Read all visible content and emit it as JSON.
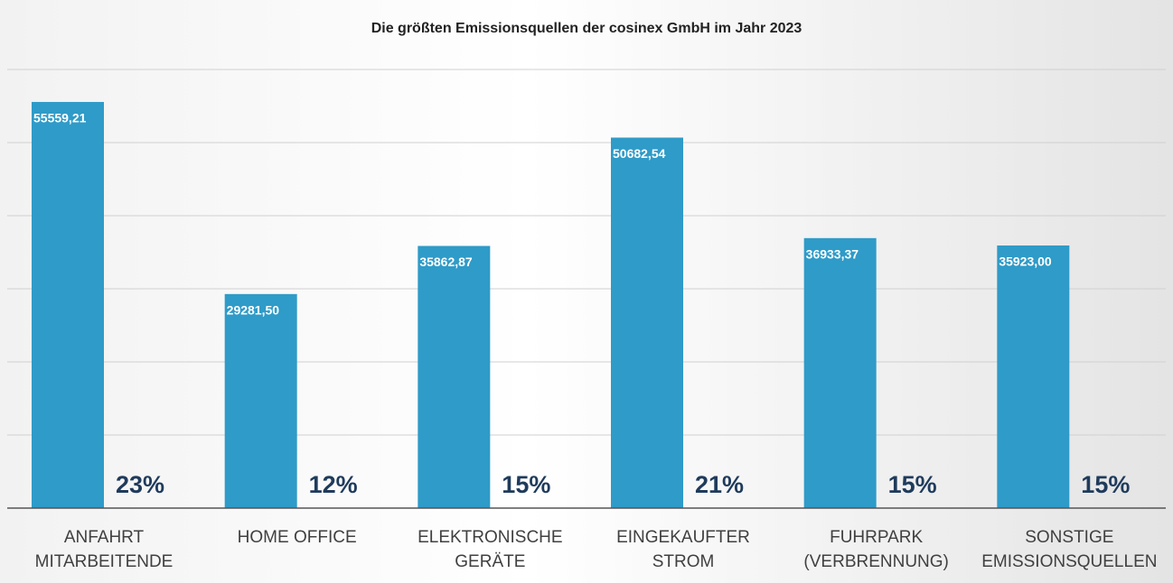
{
  "chart_data": {
    "type": "bar",
    "title": "Die größten Emissionsquellen der cosinex GmbH im Jahr 2023",
    "categories": [
      "ANFAHRT\nMITARBEITENDE",
      "HOME OFFICE",
      "ELEKTRONISCHE\nGERÄTE",
      "EINGEKAUFTER\nSTROM",
      "FUHRPARK\n(VERBRENNUNG)",
      "SONSTIGE\nEMISSIONSQUELLEN"
    ],
    "values": [
      55559.21,
      29281.5,
      35862.87,
      50682.54,
      36933.37,
      35923.0
    ],
    "value_labels": [
      "55559,21",
      "29281,50",
      "35862,87",
      "50682,54",
      "36933,37",
      "35923,00"
    ],
    "shares": [
      23,
      12,
      15,
      21,
      15,
      15
    ],
    "share_labels": [
      "23%",
      "12%",
      "15%",
      "21%",
      "15%",
      "15%"
    ],
    "color": "#2f9bc8",
    "ylim": [
      0,
      60000
    ],
    "yticks": [
      0,
      10000,
      20000,
      30000,
      40000,
      50000,
      60000
    ],
    "grid": true
  }
}
